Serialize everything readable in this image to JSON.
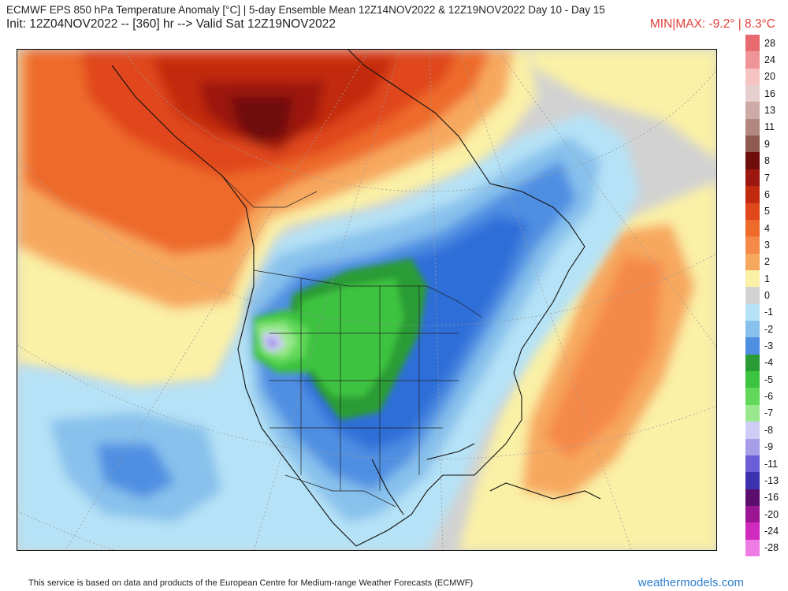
{
  "header": {
    "title": "ECMWF EPS 850 hPa Temperature Anomaly [°C] | 5-day Ensemble Mean 12Z14NOV2022 & 12Z19NOV2022   Day 10 - Day 15",
    "subtitle": "Init: 12Z04NOV2022 -- [360] hr --> Valid Sat 12Z19NOV2022",
    "minmax": "MIN|MAX: -9.2° | 8.3°C"
  },
  "colors": {
    "warm_dark": "#6e0f0c",
    "warm_red": "#c22a10",
    "warm_orange": "#ee6a2a",
    "warm_light": "#f7a45c",
    "warm_pale": "#fbd089",
    "near_zero_warm": "#faf0a6",
    "neutral": "#d2d2d2",
    "cool_pale": "#b5e2f6",
    "cool_light": "#88c1ec",
    "cool_mid": "#4f8fe2",
    "cool_deep": "#2f6ed8",
    "cold_green": "#3cc33f",
    "cold_green_light": "#86e97a",
    "cold_lavender": "#b6aef0",
    "cold_purple": "#8a78dc"
  },
  "legend": {
    "entries": [
      {
        "label": "28",
        "color": "#e76a6e"
      },
      {
        "label": "24",
        "color": "#ef9597"
      },
      {
        "label": "20",
        "color": "#f6c3c3"
      },
      {
        "label": "16",
        "color": "#e5cfcf"
      },
      {
        "label": "13",
        "color": "#cdaaa6"
      },
      {
        "label": "11",
        "color": "#b2877f"
      },
      {
        "label": "9",
        "color": "#8e5a52"
      },
      {
        "label": "8",
        "color": "#6e0f0c"
      },
      {
        "label": "7",
        "color": "#9c170f"
      },
      {
        "label": "6",
        "color": "#c22a10"
      },
      {
        "label": "5",
        "color": "#e0471b"
      },
      {
        "label": "4",
        "color": "#ee6a2a"
      },
      {
        "label": "3",
        "color": "#f5894a"
      },
      {
        "label": "2",
        "color": "#f7a85f"
      },
      {
        "label": "1",
        "color": "#faf0a6"
      },
      {
        "label": "0",
        "color": "#d2d2d2"
      },
      {
        "label": "-1",
        "color": "#b5e2f6"
      },
      {
        "label": "-2",
        "color": "#88c1ec"
      },
      {
        "label": "-3",
        "color": "#4f8fe2"
      },
      {
        "label": "-4",
        "color": "#2a9c35"
      },
      {
        "label": "-5",
        "color": "#3cc33f"
      },
      {
        "label": "-6",
        "color": "#62d95a"
      },
      {
        "label": "-7",
        "color": "#9ae88d"
      },
      {
        "label": "-8",
        "color": "#cfcdf5"
      },
      {
        "label": "-9",
        "color": "#a79de8"
      },
      {
        "label": "-11",
        "color": "#6c5ed6"
      },
      {
        "label": "-13",
        "color": "#3c32b0"
      },
      {
        "label": "-16",
        "color": "#5b0e6e"
      },
      {
        "label": "-20",
        "color": "#9b1693"
      },
      {
        "label": "-24",
        "color": "#cf2bbf"
      },
      {
        "label": "-28",
        "color": "#ef7ce5"
      }
    ]
  },
  "footer": {
    "note": "This service is based on data and products of the European Centre for Medium-range Weather Forecasts (ECMWF)",
    "site": "weathermodels.com"
  }
}
